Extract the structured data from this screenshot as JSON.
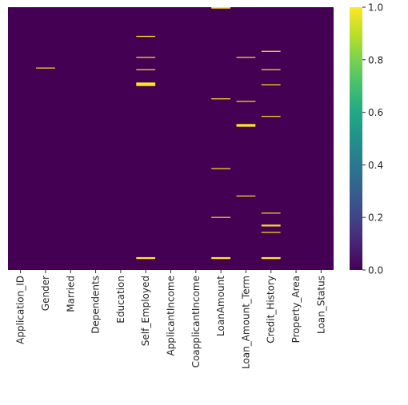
{
  "chart_data": {
    "type": "heatmap",
    "title": "",
    "xlabel": "",
    "ylabel": "",
    "row_count": 614,
    "categories": [
      "Application_ID",
      "Gender",
      "Married",
      "Dependents",
      "Education",
      "Self_Employed",
      "ApplicantIncome",
      "CoapplicantIncome",
      "LoanAmount",
      "Loan_Amount_Term",
      "Credit_History",
      "Property_Area",
      "Loan_Status"
    ],
    "missing_rows": {
      "Application_ID": [],
      "Gender": [
        141
      ],
      "Married": [],
      "Dependents": [],
      "Education": [],
      "Self_Employed": [
        67,
        116,
        145,
        176,
        178,
        180,
        182,
        584,
        586
      ],
      "ApplicantIncome": [],
      "CoapplicantIncome": [],
      "LoanAmount": [
        0,
        1,
        213,
        376,
        490,
        584,
        586
      ],
      "Loan_Amount_Term": [
        116,
        219,
        273,
        275,
        277,
        440
      ],
      "Credit_History": [
        102,
        145,
        180,
        254,
        480,
        508,
        510,
        525,
        584,
        586
      ],
      "Property_Area": [],
      "Loan_Status": []
    },
    "colormap": "viridis",
    "missing_color": "#fde725",
    "present_color": "#440154",
    "colorbar": {
      "range": [
        0.0,
        1.0
      ],
      "ticks": [
        "0.0",
        "0.2",
        "0.4",
        "0.6",
        "0.8",
        "1.0"
      ]
    }
  }
}
